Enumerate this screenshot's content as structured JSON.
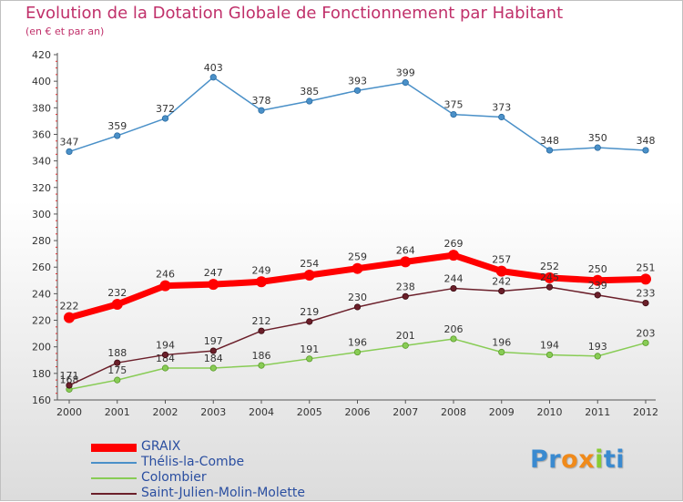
{
  "header": {
    "title": "Evolution de la Dotation Globale de Fonctionnement par Habitant",
    "subtitle": "(en € et par an)"
  },
  "chart_data": {
    "type": "line",
    "title": "Evolution de la Dotation Globale de Fonctionnement par Habitant",
    "subtitle": "(en € et par an)",
    "x": [
      "2000",
      "2001",
      "2002",
      "2003",
      "2004",
      "2005",
      "2006",
      "2007",
      "2008",
      "2009",
      "2010",
      "2011",
      "2012"
    ],
    "ylim": [
      160,
      420
    ],
    "yticks": [
      160,
      180,
      200,
      220,
      240,
      260,
      280,
      300,
      320,
      340,
      360,
      380,
      400,
      420
    ],
    "grid": false,
    "legend_position": "bottom-left",
    "series": [
      {
        "name": "GRAIX",
        "color": "#ff0000",
        "values": [
          222,
          232,
          246,
          247,
          249,
          254,
          259,
          264,
          269,
          257,
          252,
          250,
          251
        ]
      },
      {
        "name": "Thélis-la-Combe",
        "color": "#4a90c8",
        "values": [
          347,
          359,
          372,
          403,
          378,
          385,
          393,
          399,
          375,
          373,
          348,
          350,
          348
        ]
      },
      {
        "name": "Colombier",
        "color": "#88cc55",
        "values": [
          168,
          175,
          184,
          184,
          186,
          191,
          196,
          201,
          206,
          196,
          194,
          193,
          203
        ]
      },
      {
        "name": "Saint-Julien-Molin-Molette",
        "color": "#6b1f2a",
        "values": [
          171,
          188,
          194,
          197,
          212,
          219,
          230,
          238,
          244,
          242,
          245,
          239,
          233
        ]
      }
    ]
  },
  "logo": {
    "text": "Proxiti",
    "letters": [
      "P",
      "r",
      "o",
      "x",
      "i",
      "t",
      "i"
    ],
    "letter_colors": [
      "#3a8ad0",
      "#3a8ad0",
      "#f08a1a",
      "#f08a1a",
      "#88cc33",
      "#3a8ad0",
      "#3a8ad0"
    ],
    "icon": "proxiti-logo"
  }
}
